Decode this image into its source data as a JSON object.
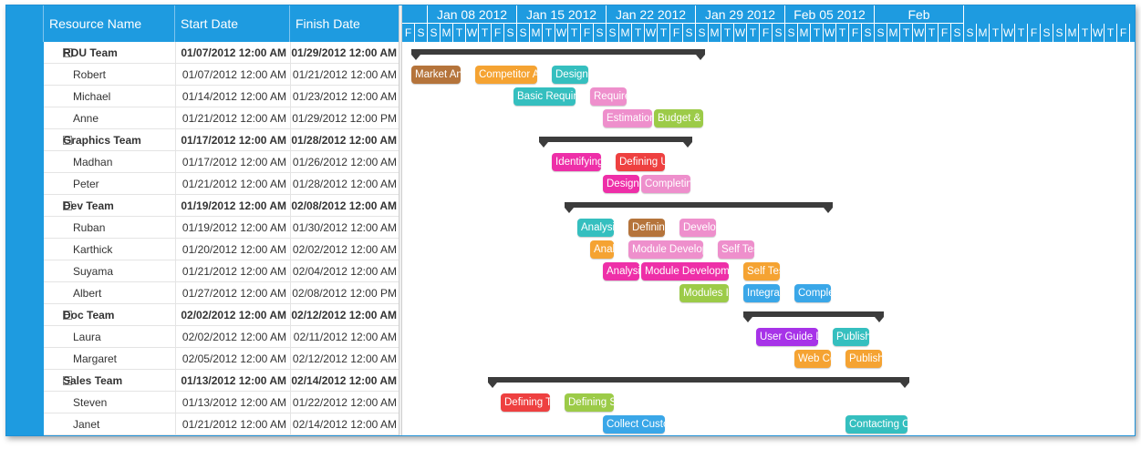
{
  "grid": {
    "columns": [
      "Resource Name",
      "Start Date",
      "Finish Date"
    ],
    "rows": [
      {
        "type": "team",
        "name": "RDU Team",
        "start": "01/07/2012 12:00 AM",
        "finish": "01/29/2012 12:00 AM"
      },
      {
        "type": "child",
        "name": "Robert",
        "start": "01/07/2012 12:00 AM",
        "finish": "01/21/2012 12:00 AM"
      },
      {
        "type": "child",
        "name": "Michael",
        "start": "01/14/2012 12:00 AM",
        "finish": "01/23/2012 12:00 AM"
      },
      {
        "type": "child",
        "name": "Anne",
        "start": "01/21/2012 12:00 AM",
        "finish": "01/29/2012 12:00 PM"
      },
      {
        "type": "team",
        "name": "Graphics Team",
        "start": "01/17/2012 12:00 AM",
        "finish": "01/28/2012 12:00 AM"
      },
      {
        "type": "child",
        "name": "Madhan",
        "start": "01/17/2012 12:00 AM",
        "finish": "01/26/2012 12:00 AM"
      },
      {
        "type": "child",
        "name": "Peter",
        "start": "01/21/2012 12:00 AM",
        "finish": "01/28/2012 12:00 AM"
      },
      {
        "type": "team",
        "name": "Dev Team",
        "start": "01/19/2012 12:00 AM",
        "finish": "02/08/2012 12:00 AM"
      },
      {
        "type": "child",
        "name": "Ruban",
        "start": "01/19/2012 12:00 AM",
        "finish": "01/30/2012 12:00 AM"
      },
      {
        "type": "child",
        "name": "Karthick",
        "start": "01/20/2012 12:00 AM",
        "finish": "02/02/2012 12:00 AM"
      },
      {
        "type": "child",
        "name": "Suyama",
        "start": "01/21/2012 12:00 AM",
        "finish": "02/04/2012 12:00 AM"
      },
      {
        "type": "child",
        "name": "Albert",
        "start": "01/27/2012 12:00 AM",
        "finish": "02/08/2012 12:00 PM"
      },
      {
        "type": "team",
        "name": "Doc Team",
        "start": "02/02/2012 12:00 AM",
        "finish": "02/12/2012 12:00 AM"
      },
      {
        "type": "child",
        "name": "Laura",
        "start": "02/02/2012 12:00 AM",
        "finish": "02/11/2012 12:00 AM"
      },
      {
        "type": "child",
        "name": "Margaret",
        "start": "02/05/2012 12:00 AM",
        "finish": "02/12/2012 12:00 AM"
      },
      {
        "type": "team",
        "name": "Sales Team",
        "start": "01/13/2012 12:00 AM",
        "finish": "02/14/2012 12:00 AM"
      },
      {
        "type": "child",
        "name": "Steven",
        "start": "01/13/2012 12:00 AM",
        "finish": "01/22/2012 12:00 AM"
      },
      {
        "type": "child",
        "name": "Janet",
        "start": "01/21/2012 12:00 AM",
        "finish": "02/14/2012 12:00 AM"
      }
    ]
  },
  "timeline": {
    "start_date": "2012-01-06",
    "week_labels": [
      {
        "label": "",
        "start": "2012-01-06",
        "days": 2
      },
      {
        "label": "Jan 08 2012",
        "start": "2012-01-08",
        "days": 7
      },
      {
        "label": "Jan 15 2012",
        "start": "2012-01-15",
        "days": 7
      },
      {
        "label": "Jan 22 2012",
        "start": "2012-01-22",
        "days": 7
      },
      {
        "label": "Jan 29 2012",
        "start": "2012-01-29",
        "days": 7
      },
      {
        "label": "Feb 05 2012",
        "start": "2012-02-05",
        "days": 7
      },
      {
        "label": "Feb",
        "start": "2012-02-12",
        "days": 7
      }
    ],
    "day_letters": [
      "F",
      "S",
      "S",
      "M",
      "T",
      "W",
      "T",
      "F",
      "S",
      "S",
      "M",
      "T",
      "W",
      "T",
      "F",
      "S",
      "S",
      "M",
      "T",
      "W",
      "T",
      "F",
      "S",
      "S",
      "M",
      "T",
      "W",
      "T",
      "F",
      "S",
      "S",
      "M",
      "T",
      "W",
      "T",
      "F",
      "S",
      "S",
      "M",
      "T",
      "W",
      "T",
      "F",
      "S",
      "S",
      "M",
      "T",
      "W",
      "T",
      "F",
      "S",
      "S",
      "M",
      "T",
      "W",
      "T",
      "F"
    ]
  },
  "summaries": [
    {
      "row": 0,
      "start": "2012-01-06",
      "end": "2012-01-29"
    },
    {
      "row": 4,
      "start": "2012-01-16",
      "end": "2012-01-28"
    },
    {
      "row": 7,
      "start": "2012-01-18",
      "end": "2012-02-08"
    },
    {
      "row": 12,
      "start": "2012-02-01",
      "end": "2012-02-12"
    },
    {
      "row": 15,
      "start": "2012-01-12",
      "end": "2012-02-14"
    }
  ],
  "tasks": [
    {
      "row": 1,
      "label": "Market Anal...",
      "start": "2012-01-06",
      "end": "2012-01-10",
      "color": "#b5743b"
    },
    {
      "row": 1,
      "label": "Competitor Analysis",
      "start": "2012-01-11",
      "end": "2012-01-16",
      "color": "#f5a332"
    },
    {
      "row": 1,
      "label": "Design Spec",
      "start": "2012-01-17",
      "end": "2012-01-20",
      "color": "#35bfbf"
    },
    {
      "row": 2,
      "label": "Basic Requireme...",
      "start": "2012-01-14",
      "end": "2012-01-19",
      "color": "#35bfbf"
    },
    {
      "row": 2,
      "label": "Requireme...",
      "start": "2012-01-20",
      "end": "2012-01-23",
      "color": "#ee8fcc"
    },
    {
      "row": 3,
      "label": "Estimation",
      "start": "2012-01-21",
      "end": "2012-01-25",
      "color": "#ee8fcc"
    },
    {
      "row": 3,
      "label": "Budget & Pla...",
      "start": "2012-01-25",
      "end": "2012-01-29",
      "color": "#9ccb48"
    },
    {
      "row": 5,
      "label": "Identifying U...",
      "start": "2012-01-17",
      "end": "2012-01-21",
      "color": "#ee2fa8"
    },
    {
      "row": 5,
      "label": "Defining UI De...",
      "start": "2012-01-22",
      "end": "2012-01-26",
      "color": "#ee4040"
    },
    {
      "row": 6,
      "label": "Designin...",
      "start": "2012-01-21",
      "end": "2012-01-24",
      "color": "#ee2fa8"
    },
    {
      "row": 6,
      "label": "Completin...",
      "start": "2012-01-24",
      "end": "2012-01-28",
      "color": "#ee8fcc"
    },
    {
      "row": 8,
      "label": "Analysis",
      "start": "2012-01-19",
      "end": "2012-01-22",
      "color": "#35bfbf"
    },
    {
      "row": 8,
      "label": "Defining...",
      "start": "2012-01-23",
      "end": "2012-01-26",
      "color": "#b5743b"
    },
    {
      "row": 8,
      "label": "Developm...",
      "start": "2012-01-27",
      "end": "2012-01-30",
      "color": "#ee8fcc"
    },
    {
      "row": 9,
      "label": "Analysis",
      "start": "2012-01-20",
      "end": "2012-01-22",
      "color": "#f5a332"
    },
    {
      "row": 9,
      "label": "Module Development",
      "start": "2012-01-23",
      "end": "2012-01-29",
      "color": "#ee8fcc"
    },
    {
      "row": 9,
      "label": "Self Testing",
      "start": "2012-01-30",
      "end": "2012-02-02",
      "color": "#ee8fcc"
    },
    {
      "row": 10,
      "label": "Analysis",
      "start": "2012-01-21",
      "end": "2012-01-24",
      "color": "#ee2fa8"
    },
    {
      "row": 10,
      "label": "Module Development",
      "start": "2012-01-24",
      "end": "2012-01-31",
      "color": "#ee2fa8"
    },
    {
      "row": 10,
      "label": "Self Testi...",
      "start": "2012-02-01",
      "end": "2012-02-04",
      "color": "#f5a332"
    },
    {
      "row": 11,
      "label": "Modules Inte...",
      "start": "2012-01-27",
      "end": "2012-01-31",
      "color": "#9ccb48"
    },
    {
      "row": 11,
      "label": "Integration...",
      "start": "2012-02-01",
      "end": "2012-02-04",
      "color": "#3aa7e8"
    },
    {
      "row": 11,
      "label": "Completen...",
      "start": "2012-02-05",
      "end": "2012-02-08",
      "color": "#3aa7e8"
    },
    {
      "row": 13,
      "label": "User Guide Devel...",
      "start": "2012-02-02",
      "end": "2012-02-07",
      "color": "#a733e8"
    },
    {
      "row": 13,
      "label": "Publishi...",
      "start": "2012-02-08",
      "end": "2012-02-11",
      "color": "#35bfbf"
    },
    {
      "row": 14,
      "label": "Web Co...",
      "start": "2012-02-05",
      "end": "2012-02-08",
      "color": "#f5a332"
    },
    {
      "row": 14,
      "label": "Publishing...",
      "start": "2012-02-09",
      "end": "2012-02-12",
      "color": "#f5a332"
    },
    {
      "row": 16,
      "label": "Defining Tar...",
      "start": "2012-01-13",
      "end": "2012-01-17",
      "color": "#ee4040"
    },
    {
      "row": 16,
      "label": "Defining Star...",
      "start": "2012-01-18",
      "end": "2012-01-22",
      "color": "#9ccb48"
    },
    {
      "row": 17,
      "label": "Collect Customer...",
      "start": "2012-01-21",
      "end": "2012-01-26",
      "color": "#3aa7e8"
    },
    {
      "row": 17,
      "label": "Contacting Custo...",
      "start": "2012-02-09",
      "end": "2012-02-14",
      "color": "#35bfbf"
    }
  ]
}
